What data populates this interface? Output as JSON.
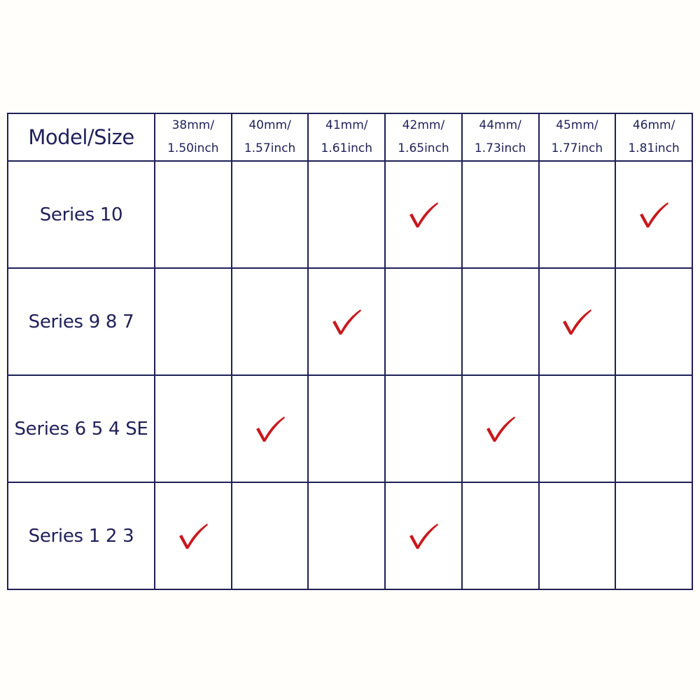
{
  "table": {
    "corner_label": "Model/Size",
    "sizes": [
      {
        "mm": "38mm/",
        "inch": "1.50inch"
      },
      {
        "mm": "40mm/",
        "inch": "1.57inch"
      },
      {
        "mm": "41mm/",
        "inch": "1.61inch"
      },
      {
        "mm": "42mm/",
        "inch": "1.65inch"
      },
      {
        "mm": "44mm/",
        "inch": "1.73inch"
      },
      {
        "mm": "45mm/",
        "inch": "1.77inch"
      },
      {
        "mm": "46mm/",
        "inch": "1.81inch"
      }
    ],
    "rows": [
      {
        "model": "Series 10",
        "compatible": [
          false,
          false,
          false,
          true,
          false,
          false,
          true
        ]
      },
      {
        "model": "Series 9 8 7",
        "compatible": [
          false,
          false,
          true,
          false,
          false,
          true,
          false
        ]
      },
      {
        "model": "Series 6 5 4 SE",
        "compatible": [
          false,
          true,
          false,
          false,
          true,
          false,
          false
        ]
      },
      {
        "model": "Series 1 2 3",
        "compatible": [
          true,
          false,
          false,
          true,
          false,
          false,
          false
        ]
      }
    ]
  },
  "colors": {
    "text": "#1f2058",
    "check": "#c8191e",
    "border": "#1f2058"
  },
  "icons": {
    "check": "check-mark-icon"
  }
}
